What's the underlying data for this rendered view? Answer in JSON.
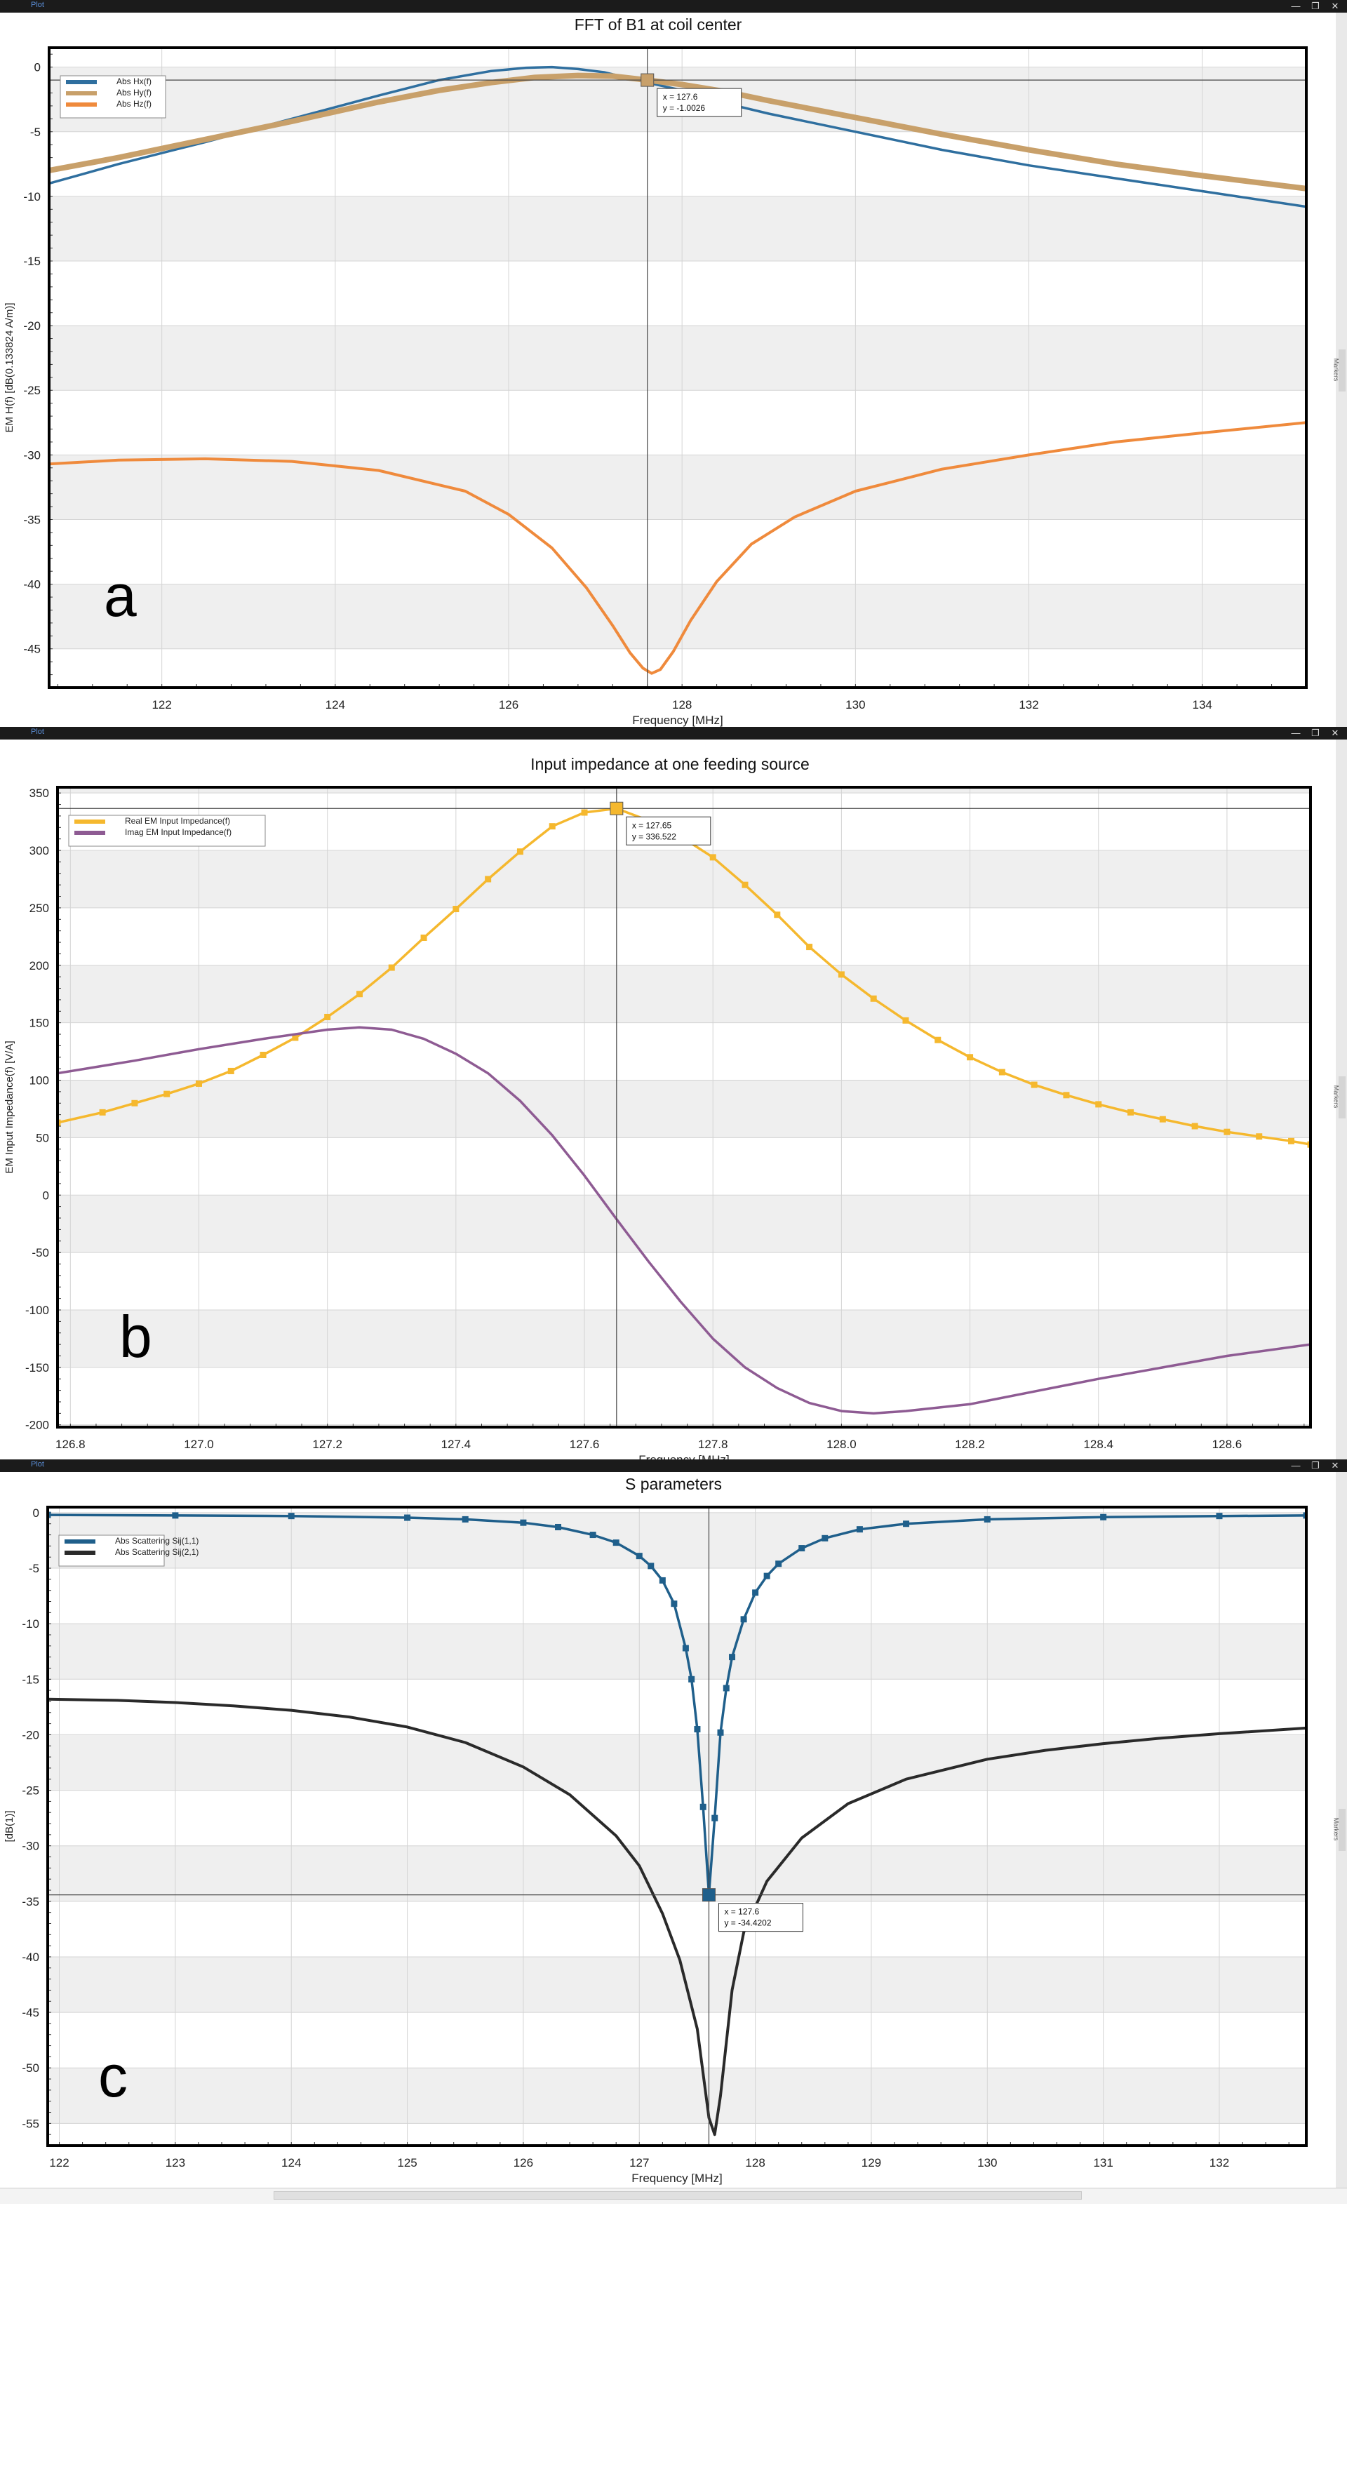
{
  "app": {
    "window_label": "Plot",
    "win_buttons": [
      "—",
      "❐",
      "✕"
    ],
    "side_tab_label": "Markers"
  },
  "panels": [
    {
      "panel_label": "a",
      "chart_data": {
        "type": "line",
        "title": "FFT of B1 at coil center",
        "xlabel": "Frequency [MHz]",
        "ylabel": "EM H(f) [dB(0.133824 A/m)]",
        "xlim": [
          120.7,
          135.2
        ],
        "ylim": [
          -48,
          1.5
        ],
        "xticks": [
          122,
          124,
          126,
          128,
          130,
          132,
          134
        ],
        "yticks": [
          0,
          -5,
          -10,
          -15,
          -20,
          -25,
          -30,
          -35,
          -40,
          -45
        ],
        "band_step": 5,
        "grid": true,
        "legend_position": "top-left",
        "series": [
          {
            "name": "Abs Hx(f)",
            "color": "#2f6f9f",
            "width": 3.5,
            "markers": false,
            "x": [
              120.7,
              121.5,
              122.5,
              123.5,
              124.5,
              125.2,
              125.8,
              126.2,
              126.5,
              126.8,
              127.1,
              127.6,
              128.0,
              128.5,
              129.0,
              130.0,
              131.0,
              132.0,
              133.0,
              134.0,
              135.2
            ],
            "y": [
              -9.0,
              -7.5,
              -5.8,
              -4.0,
              -2.2,
              -1.0,
              -0.3,
              -0.05,
              0.0,
              -0.15,
              -0.4,
              -1.2,
              -1.8,
              -2.8,
              -3.6,
              -5.0,
              -6.4,
              -7.6,
              -8.6,
              -9.6,
              -10.8
            ]
          },
          {
            "name": "Abs Hy(f)",
            "color": "#c8a06a",
            "width": 8,
            "markers": false,
            "x": [
              120.7,
              121.5,
              122.5,
              123.5,
              124.5,
              125.2,
              125.8,
              126.3,
              126.8,
              127.2,
              127.6,
              128.0,
              128.5,
              129.0,
              130.0,
              131.0,
              132.0,
              133.0,
              134.0,
              135.2
            ],
            "y": [
              -8.0,
              -7.0,
              -5.6,
              -4.2,
              -2.7,
              -1.8,
              -1.2,
              -0.8,
              -0.65,
              -0.7,
              -1.0,
              -1.35,
              -1.9,
              -2.6,
              -3.9,
              -5.2,
              -6.4,
              -7.5,
              -8.4,
              -9.4
            ]
          },
          {
            "name": "Abs Hz(f)",
            "color": "#ef8a3c",
            "width": 4,
            "markers": false,
            "x": [
              120.7,
              121.5,
              122.5,
              123.5,
              124.5,
              125.5,
              126.0,
              126.5,
              126.9,
              127.2,
              127.4,
              127.55,
              127.65,
              127.75,
              127.9,
              128.1,
              128.4,
              128.8,
              129.3,
              130.0,
              131.0,
              132.0,
              133.0,
              134.0,
              135.2
            ],
            "y": [
              -30.7,
              -30.4,
              -30.3,
              -30.5,
              -31.2,
              -32.8,
              -34.6,
              -37.2,
              -40.3,
              -43.2,
              -45.3,
              -46.5,
              -46.9,
              -46.6,
              -45.2,
              -42.8,
              -39.8,
              -36.9,
              -34.8,
              -32.8,
              -31.1,
              -30.0,
              -29.0,
              -28.3,
              -27.5
            ]
          }
        ],
        "cursor": {
          "x": 127.6,
          "y": -1.0026,
          "label_x": "x =  127.6",
          "label_y": "y =  -1.0026",
          "marker_color": "#c8a06a"
        }
      }
    },
    {
      "panel_label": "b",
      "chart_data": {
        "type": "line",
        "title": "Input impedance at one feeding source",
        "xlabel": "Frequency [MHz]",
        "ylabel": "EM Input Impedance(f) [V/A]",
        "xlim": [
          126.78,
          128.73
        ],
        "ylim": [
          -202,
          355
        ],
        "xticks": [
          126.8,
          127.0,
          127.2,
          127.4,
          127.6,
          127.8,
          128.0,
          128.2,
          128.4,
          128.6
        ],
        "xtick_labels": [
          "126.8",
          "127.0",
          "127.2",
          "127.4",
          "127.6",
          "127.8",
          "128.0",
          "128.2",
          "128.4",
          "128.6"
        ],
        "yticks": [
          350,
          300,
          250,
          200,
          150,
          100,
          50,
          0,
          -50,
          -100,
          -150,
          -200
        ],
        "band_step": 50,
        "grid": true,
        "legend_position": "top-left",
        "series": [
          {
            "name": "Real EM Input Impedance(f)",
            "color": "#f5b82e",
            "width": 3.5,
            "markers": true,
            "x": [
              126.78,
              126.85,
              126.9,
              126.95,
              127.0,
              127.05,
              127.1,
              127.15,
              127.2,
              127.25,
              127.3,
              127.35,
              127.4,
              127.45,
              127.5,
              127.55,
              127.6,
              127.65,
              127.7,
              127.75,
              127.8,
              127.85,
              127.9,
              127.95,
              128.0,
              128.05,
              128.1,
              128.15,
              128.2,
              128.25,
              128.3,
              128.35,
              128.4,
              128.45,
              128.5,
              128.55,
              128.6,
              128.65,
              128.7,
              128.73
            ],
            "y": [
              63,
              72,
              80,
              88,
              97,
              108,
              122,
              137,
              155,
              175,
              198,
              224,
              249,
              275,
              299,
              321,
              333,
              336.5,
              326,
              312,
              294,
              270,
              244,
              216,
              192,
              171,
              152,
              135,
              120,
              107,
              96,
              87,
              79,
              72,
              66,
              60,
              55,
              51,
              47,
              44
            ]
          },
          {
            "name": "Imag EM Input Impedance(f)",
            "color": "#8e5b93",
            "width": 3.5,
            "markers": false,
            "x": [
              126.78,
              126.9,
              127.0,
              127.1,
              127.2,
              127.25,
              127.3,
              127.35,
              127.4,
              127.45,
              127.5,
              127.55,
              127.6,
              127.65,
              127.7,
              127.75,
              127.8,
              127.85,
              127.9,
              127.95,
              128.0,
              128.05,
              128.1,
              128.2,
              128.3,
              128.4,
              128.5,
              128.6,
              128.73
            ],
            "y": [
              106,
              117,
              127,
              136,
              144,
              146,
              144,
              136,
              123,
              106,
              82,
              52,
              17,
              -21,
              -58,
              -93,
              -125,
              -150,
              -168,
              -181,
              -188,
              -190,
              -188,
              -182,
              -171,
              -160,
              -150,
              -140,
              -130
            ]
          }
        ],
        "cursor": {
          "x": 127.65,
          "y": 336.522,
          "label_x": "x = 127.65",
          "label_y": "y = 336.522",
          "marker_color": "#f5b82e"
        }
      }
    },
    {
      "panel_label": "c",
      "chart_data": {
        "type": "line",
        "title": "S parameters",
        "xlabel": "Frequency [MHz]",
        "ylabel": "[dB(1)]",
        "xlim": [
          121.9,
          132.75
        ],
        "ylim": [
          -57,
          0.5
        ],
        "xticks": [
          122,
          123,
          124,
          125,
          126,
          127,
          128,
          129,
          130,
          131,
          132
        ],
        "yticks": [
          0,
          -5,
          -10,
          -15,
          -20,
          -25,
          -30,
          -35,
          -40,
          -45,
          -50,
          -55
        ],
        "band_step": 5,
        "grid": true,
        "legend_position": "top-left",
        "series": [
          {
            "name": "Abs Scattering Sij(1,1)",
            "color": "#1f5f8b",
            "width": 3.5,
            "markers": true,
            "x": [
              121.9,
              123.0,
              124.0,
              125.0,
              125.5,
              126.0,
              126.3,
              126.6,
              126.8,
              127.0,
              127.1,
              127.2,
              127.3,
              127.4,
              127.45,
              127.5,
              127.55,
              127.6,
              127.65,
              127.7,
              127.75,
              127.8,
              127.9,
              128.0,
              128.1,
              128.2,
              128.4,
              128.6,
              128.9,
              129.3,
              130.0,
              131.0,
              132.0,
              132.75
            ],
            "y": [
              -0.2,
              -0.25,
              -0.3,
              -0.45,
              -0.6,
              -0.9,
              -1.3,
              -2.0,
              -2.7,
              -3.9,
              -4.8,
              -6.1,
              -8.2,
              -12.2,
              -15.0,
              -19.5,
              -26.5,
              -34.4,
              -27.5,
              -19.8,
              -15.8,
              -13.0,
              -9.6,
              -7.2,
              -5.7,
              -4.6,
              -3.2,
              -2.3,
              -1.5,
              -1.0,
              -0.6,
              -0.4,
              -0.3,
              -0.25
            ]
          },
          {
            "name": "Abs Scattering Sij(2,1)",
            "color": "#2a2a2a",
            "width": 4,
            "markers": false,
            "x": [
              121.9,
              122.5,
              123.0,
              123.5,
              124.0,
              124.5,
              125.0,
              125.5,
              126.0,
              126.4,
              126.8,
              127.0,
              127.2,
              127.35,
              127.5,
              127.6,
              127.65,
              127.7,
              127.8,
              127.9,
              128.1,
              128.4,
              128.8,
              129.3,
              130.0,
              130.5,
              131.0,
              131.5,
              132.0,
              132.75
            ],
            "y": [
              -16.8,
              -16.9,
              -17.1,
              -17.4,
              -17.8,
              -18.4,
              -19.3,
              -20.7,
              -22.9,
              -25.4,
              -29.1,
              -31.8,
              -36.1,
              -40.3,
              -46.5,
              -54.5,
              -56.0,
              -52.5,
              -43.0,
              -37.8,
              -33.2,
              -29.3,
              -26.2,
              -24.0,
              -22.2,
              -21.4,
              -20.8,
              -20.3,
              -19.9,
              -19.4
            ]
          }
        ],
        "cursor": {
          "x": 127.6,
          "y": -34.4202,
          "label_x": "x = 127.6",
          "label_y": "y = -34.4202",
          "marker_color": "#1f5f8b"
        }
      }
    }
  ]
}
